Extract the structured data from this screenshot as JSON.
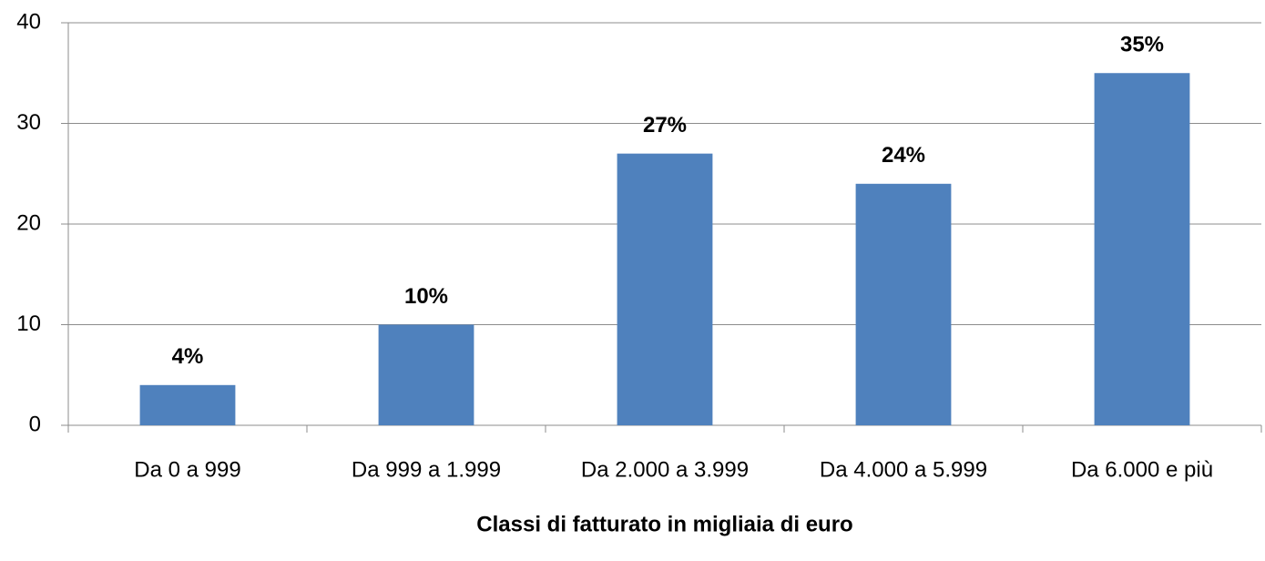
{
  "chart_data": {
    "type": "bar",
    "x_label": "Classi di fatturato in migliaia di euro",
    "categories": [
      "Da 0 a 999",
      "Da 999 a 1.999",
      "Da 2.000 a 3.999",
      "Da 4.000 a 5.999",
      "Da 6.000 e più"
    ],
    "values": [
      4,
      10,
      27,
      24,
      35
    ],
    "value_labels": [
      "4%",
      "10%",
      "27%",
      "24%",
      "35%"
    ],
    "color": "#4f81bd",
    "ylim": [
      0,
      40
    ],
    "yticks": [
      0,
      10,
      20,
      30,
      40
    ],
    "grid": true
  }
}
